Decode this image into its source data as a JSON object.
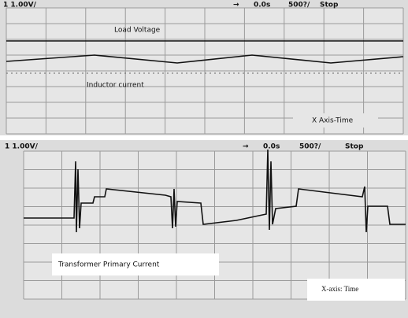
{
  "top_panel": {
    "header": {
      "channel": "1 1.00V/",
      "arrow": "→",
      "time": "0.0s",
      "timebase": "500?/",
      "state": "Stop"
    },
    "labels": {
      "load": "Load Voltage",
      "inductor": "Inductor current",
      "x_axis": "X Axis-Time"
    }
  },
  "bottom_panel": {
    "header": {
      "channel": "1 1.00V/",
      "arrow": "→",
      "time": "0.0s",
      "timebase": "500?/",
      "state": "Stop"
    },
    "labels": {
      "current": "Transformer Primary Current",
      "x_axis": "X-axis: Time"
    }
  }
}
